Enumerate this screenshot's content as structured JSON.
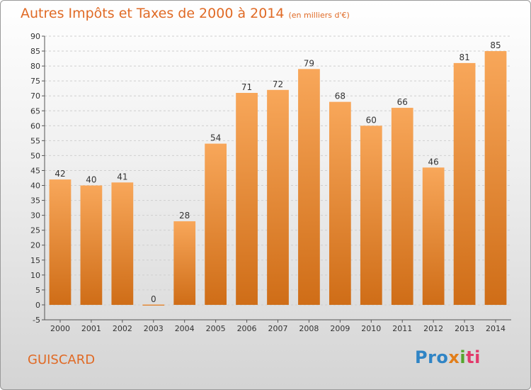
{
  "header": {
    "title": "Autres Impôts et Taxes de 2000 à 2014",
    "unit": "(en milliers d'€)"
  },
  "footer": {
    "commune": "GUISCARD",
    "logo_parts": [
      "Pro",
      "x",
      "i",
      "ti"
    ]
  },
  "colors": {
    "bar_light": "#f8a75a",
    "bar_dark": "#cf6d17",
    "title": "#e06a25",
    "grid": "#cfcfcf"
  },
  "chart_data": {
    "type": "bar",
    "title": "Autres Impôts et Taxes de 2000 à 2014",
    "subtitle": "(en milliers d'€)",
    "categories": [
      "2000",
      "2001",
      "2002",
      "2003",
      "2004",
      "2005",
      "2006",
      "2007",
      "2008",
      "2009",
      "2010",
      "2011",
      "2012",
      "2013",
      "2014"
    ],
    "values": [
      42,
      40,
      41,
      0,
      28,
      54,
      71,
      72,
      79,
      68,
      60,
      66,
      46,
      81,
      85
    ],
    "ylim": [
      -5,
      90
    ],
    "yticks": [
      -5,
      0,
      5,
      10,
      15,
      20,
      25,
      30,
      35,
      40,
      45,
      50,
      55,
      60,
      65,
      70,
      75,
      80,
      85,
      90
    ],
    "grid": "horizontal dashed",
    "data_labels": true,
    "legend": "none"
  }
}
